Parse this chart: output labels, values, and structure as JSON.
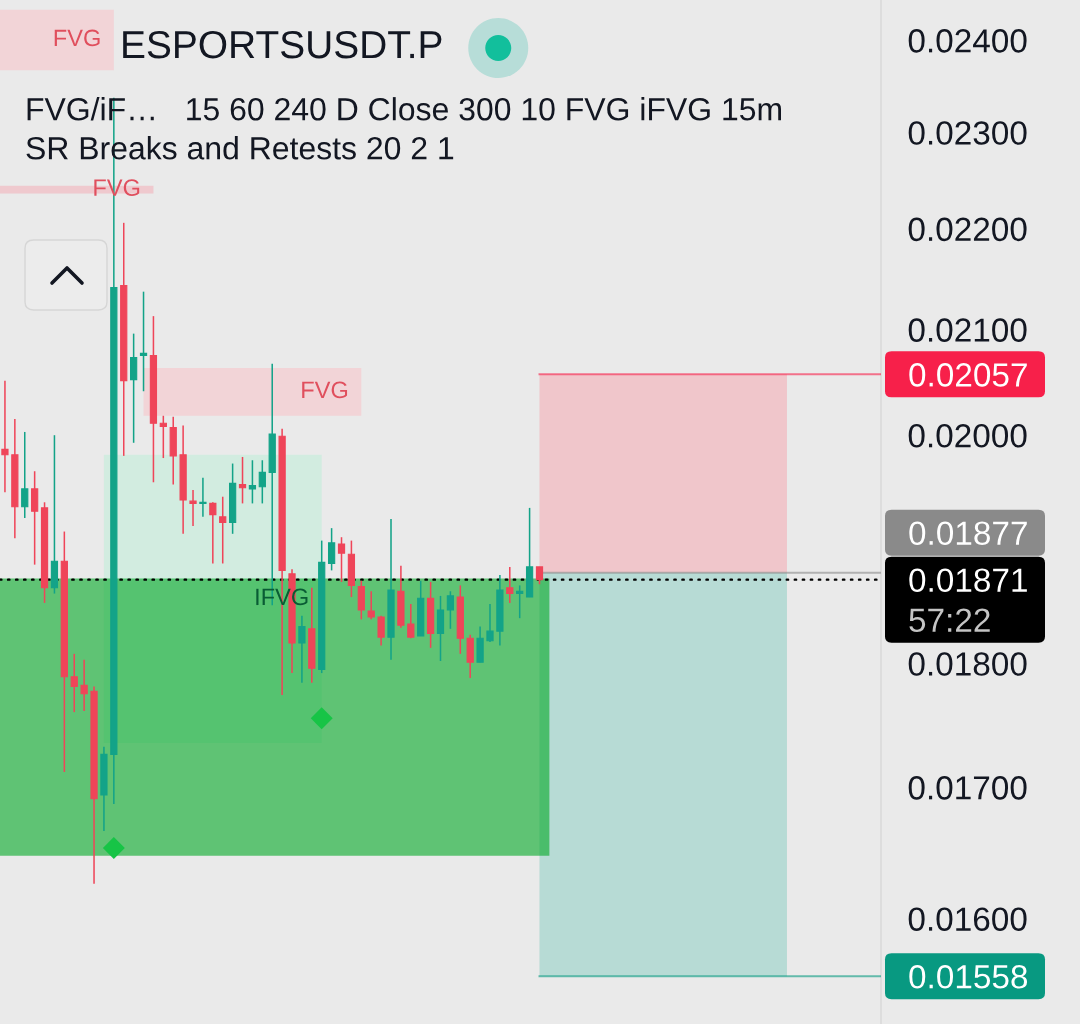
{
  "chart_data": {
    "type": "candlestick",
    "title": "ESPORTSUSDT.P",
    "annotations": [
      "FVG/iF…   15 60 240 D Close 300 10 FVG iFVG 15m",
      "SR Breaks and Retests 20 2 1"
    ],
    "categories": [
      null,
      null,
      null,
      null,
      null,
      null,
      null,
      null,
      null,
      null,
      null,
      null,
      null,
      null,
      null,
      null,
      null,
      null,
      null,
      null,
      null,
      null,
      null,
      null,
      null,
      null,
      null,
      null,
      null,
      null,
      null,
      null,
      null,
      null,
      null,
      null,
      null,
      null,
      null,
      null,
      null,
      null,
      null,
      null,
      null,
      null,
      null,
      null,
      null,
      null,
      null,
      null,
      null,
      null,
      null,
      null,
      null,
      null,
      null,
      null,
      null,
      null,
      null,
      null,
      null,
      null,
      null,
      null,
      null,
      null,
      null,
      null,
      null,
      null,
      null,
      null,
      null,
      null,
      null,
      null,
      null,
      null,
      null,
      null,
      null,
      null,
      null,
      null,
      null
    ],
    "ohlc": [
      [
        0.01987,
        0.02051,
        0.01948,
        0.01982
      ],
      [
        0.01982,
        0.02015,
        0.01907,
        0.01935
      ],
      [
        0.01935,
        0.02003,
        0.01925,
        0.01951
      ],
      [
        0.01951,
        0.01967,
        0.01884,
        0.01931
      ],
      [
        0.01934,
        0.01939,
        0.01851,
        0.01864
      ],
      [
        0.01864,
        0.02,
        0.01859,
        0.01887
      ],
      [
        0.01887,
        0.01913,
        0.01712,
        0.01789
      ],
      [
        0.01789,
        0.01808,
        0.0176,
        0.01781
      ],
      [
        0.01782,
        0.01803,
        0.01761,
        0.01775
      ],
      [
        0.01777,
        0.01781,
        0.01626,
        0.01691
      ],
      [
        0.01694,
        0.01732,
        0.01666,
        0.01726
      ],
      [
        0.01726,
        0.02337,
        0.01687,
        0.02141
      ],
      [
        0.02143,
        0.02206,
        0.01981,
        0.02051
      ],
      [
        0.02052,
        0.02096,
        0.01993,
        0.02073
      ],
      [
        0.02075,
        0.02137,
        0.02041,
        0.02077
      ],
      [
        0.02075,
        0.02113,
        0.01957,
        0.02011
      ],
      [
        0.02011,
        0.02018,
        0.01979,
        0.02008
      ],
      [
        0.02007,
        0.02017,
        0.01955,
        0.01981
      ],
      [
        0.01982,
        0.02009,
        0.01911,
        0.01941
      ],
      [
        0.0194,
        0.0195,
        0.01918,
        0.01938
      ],
      [
        0.01938,
        0.01961,
        0.01926,
        0.01939
      ],
      [
        0.01938,
        0.01939,
        0.01885,
        0.01928
      ],
      [
        0.01926,
        0.01944,
        0.01885,
        0.01921
      ],
      [
        0.01921,
        0.01974,
        0.01911,
        0.01956
      ],
      [
        0.01955,
        0.0198,
        0.01938,
        0.01952
      ],
      [
        0.01951,
        0.01977,
        0.01938,
        0.01954
      ],
      [
        0.01953,
        0.01977,
        0.01938,
        0.01966
      ],
      [
        0.01966,
        0.02067,
        0.01849,
        0.02001
      ],
      [
        0.01999,
        0.02006,
        0.01774,
        0.01879
      ],
      [
        0.01876,
        0.0188,
        0.01792,
        0.01817
      ],
      [
        0.01817,
        0.0184,
        0.01784,
        0.01831
      ],
      [
        0.01829,
        0.01864,
        0.01784,
        0.01796
      ],
      [
        0.01795,
        0.01905,
        0.01792,
        0.01886
      ],
      [
        0.01885,
        0.01916,
        0.01879,
        0.01903
      ],
      [
        0.01902,
        0.01908,
        0.01869,
        0.01894
      ],
      [
        0.01893,
        0.01905,
        0.01856,
        0.01866
      ],
      [
        0.01865,
        0.0187,
        0.01837,
        0.01845
      ],
      [
        0.01844,
        0.01861,
        0.01837,
        0.01839
      ],
      [
        0.01839,
        0.0184,
        0.01815,
        0.01822
      ],
      [
        0.01822,
        0.01924,
        0.01803,
        0.01862
      ],
      [
        0.01861,
        0.01883,
        0.0183,
        0.01832
      ],
      [
        0.01833,
        0.0185,
        0.01821,
        0.01822
      ],
      [
        0.01823,
        0.0187,
        0.01823,
        0.01855
      ],
      [
        0.01855,
        0.01869,
        0.01813,
        0.01825
      ],
      [
        0.01825,
        0.01857,
        0.01802,
        0.01845
      ],
      [
        0.01845,
        0.01861,
        0.01829,
        0.01857
      ],
      [
        0.01856,
        0.01866,
        0.01808,
        0.01821
      ],
      [
        0.01821,
        0.01824,
        0.01788,
        0.01801
      ],
      [
        0.01801,
        0.01831,
        0.01801,
        0.01821
      ],
      [
        0.01819,
        0.0185,
        0.01818,
        0.01827
      ],
      [
        0.01827,
        0.01875,
        0.01815,
        0.01862
      ],
      [
        0.01864,
        0.01882,
        0.01851,
        0.01859
      ],
      [
        0.01859,
        0.01866,
        0.01838,
        0.01861
      ],
      [
        0.01856,
        0.01934,
        0.01856,
        0.01882
      ],
      [
        0.01882,
        0.01882,
        0.01867,
        0.01871
      ],
      null,
      null,
      null,
      null,
      null,
      null,
      null,
      null,
      null,
      null,
      null,
      null,
      null,
      null,
      null,
      null,
      null,
      null,
      null,
      null,
      null,
      null,
      null,
      null,
      null,
      null,
      null,
      null,
      null,
      null,
      null,
      null,
      null,
      null
    ],
    "colors": [
      "#ef4559",
      "#ef4559",
      "#13a388",
      "#ef4559",
      "#ef4559",
      "#13a388",
      "#ef4559",
      "#ef4559",
      "#ef4559",
      "#ef4559",
      "#13a388",
      "#13a388",
      "#ef4559",
      "#13a388",
      "#13a388",
      "#ef4559",
      "#ef4559",
      "#ef4559",
      "#ef4559",
      "#ef4559",
      "#13a388",
      "#ef4559",
      "#ef4559",
      "#13a388",
      "#ef4559",
      "#13a388",
      "#13a388",
      "#13a388",
      "#ef4559",
      "#ef4559",
      "#13a388",
      "#ef4559",
      "#13a388",
      "#13a388",
      "#ef4559",
      "#ef4559",
      "#ef4559",
      "#ef4559",
      "#ef4559",
      "#13a388",
      "#ef4559",
      "#ef4559",
      "#13a388",
      "#ef4559",
      "#13a388",
      "#13a388",
      "#ef4559",
      "#ef4559",
      "#13a388",
      "#13a388",
      "#13a388",
      "#ef4559",
      "#13a388",
      "#13a388",
      "#ef4559",
      null,
      null,
      null,
      null,
      null,
      null,
      null,
      null,
      null,
      null,
      null,
      null,
      null,
      null,
      null,
      null,
      null,
      null,
      null,
      null,
      null,
      null,
      null,
      null,
      null,
      null,
      null,
      null,
      null,
      null,
      null,
      null,
      null,
      null
    ],
    "series": [
      {
        "type": "scatter",
        "marker": "diamond",
        "color": "#17c446",
        "values": [
          null,
          null,
          null,
          null,
          null,
          null,
          null,
          null,
          null,
          null,
          null,
          0.01653,
          null,
          null,
          null,
          null,
          null,
          null,
          null,
          null,
          null,
          null,
          null,
          null,
          null,
          null,
          null,
          null,
          null,
          null,
          null,
          null,
          0.01755,
          null,
          null,
          null,
          null,
          null,
          null,
          null,
          null,
          null,
          null,
          null,
          null,
          null,
          null,
          null,
          null,
          null,
          null,
          null,
          null,
          null,
          null,
          null,
          null,
          null,
          null,
          null,
          null,
          null,
          null,
          null,
          null,
          null,
          null,
          null,
          null,
          null,
          null,
          null,
          null,
          null,
          null,
          null,
          null,
          null,
          null,
          null,
          null,
          null,
          null,
          null,
          null,
          null,
          null,
          null,
          null
        ]
      }
    ],
    "bands": [
      {
        "axis": "y",
        "from": 0.02367,
        "to": 0.02434,
        "label": "FVG",
        "color": "#f2d4d7"
      },
      {
        "axis": "y",
        "from": 0.02236,
        "to": 0.02244,
        "label": "FVG",
        "color": "#efc9cd"
      },
      {
        "axis": "y",
        "from": 0.02018,
        "to": 0.02063,
        "label": "FVG",
        "color": "#f2d4d7"
      },
      {
        "axis": "y",
        "from": 0.01735,
        "to": 0.01982,
        "label": "IFVG",
        "color": "#d2ebdf"
      },
      {
        "axis": "y",
        "from": 0.01877,
        "to": 0.02057,
        "color": "#f0c6ca"
      },
      {
        "axis": "y",
        "from": 0.01558,
        "to": 0.01877,
        "color": "#b7dbd5"
      },
      {
        "axis": "y",
        "from": 0.01647,
        "to": 0.01872,
        "color": "#5ec374"
      }
    ],
    "ylim": [
      0.01524,
      0.02445
    ],
    "yticks": [
      {
        "value": 0.016,
        "label": "0.01600"
      },
      {
        "value": 0.017,
        "label": "0.01700"
      },
      {
        "value": 0.018,
        "label": "0.01800"
      },
      {
        "value": 0.02,
        "label": "0.02000"
      },
      {
        "value": 0.021,
        "label": "0.02100"
      },
      {
        "value": 0.022,
        "label": "0.02200"
      },
      {
        "value": 0.023,
        "label": "0.02300"
      },
      {
        "value": 0.024,
        "label": "0.02400"
      }
    ],
    "log": "y",
    "tick_labels": "y",
    "ref_lines": [
      {
        "axis": "y",
        "value": 0.02057,
        "label": "0.02057",
        "color": "#f7204a",
        "line_style": "solid"
      },
      {
        "axis": "y",
        "value": 0.01877,
        "label": "0.01877",
        "color": "#8a8a8a",
        "line_style": "solid"
      },
      {
        "axis": "y",
        "value": 0.01871,
        "label": "0.01871\n57:22",
        "color": "#000000",
        "line_style": "dotted"
      },
      {
        "axis": "y",
        "value": 0.01558,
        "label": "0.01558",
        "color": "#089981",
        "line_style": "solid"
      }
    ]
  }
}
